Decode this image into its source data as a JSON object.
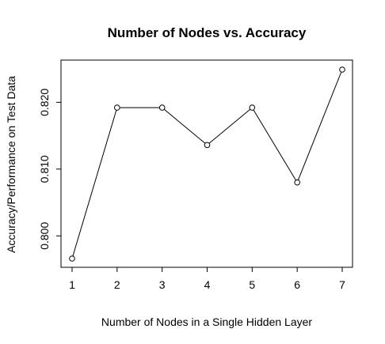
{
  "chart_data": {
    "type": "line",
    "title": "Number of Nodes vs. Accuracy",
    "xlabel": "Number of Nodes in a Single Hidden Layer",
    "ylabel": "Accuracy/Performance on Test Data",
    "x": [
      1,
      2,
      3,
      4,
      5,
      6,
      7
    ],
    "y": [
      0.7966,
      0.8192,
      0.8192,
      0.8136,
      0.8192,
      0.808,
      0.8249
    ],
    "xlim": [
      1,
      7
    ],
    "ylim": [
      0.7966,
      0.8249
    ],
    "x_ticks": [
      1,
      2,
      3,
      4,
      5,
      6,
      7
    ],
    "x_tick_labels": [
      "1",
      "2",
      "3",
      "4",
      "5",
      "6",
      "7"
    ],
    "y_ticks": [
      0.8,
      0.81,
      0.82
    ],
    "y_tick_labels": [
      "0.800",
      "0.810",
      "0.820"
    ],
    "grid": false,
    "marker": "open-circle"
  }
}
